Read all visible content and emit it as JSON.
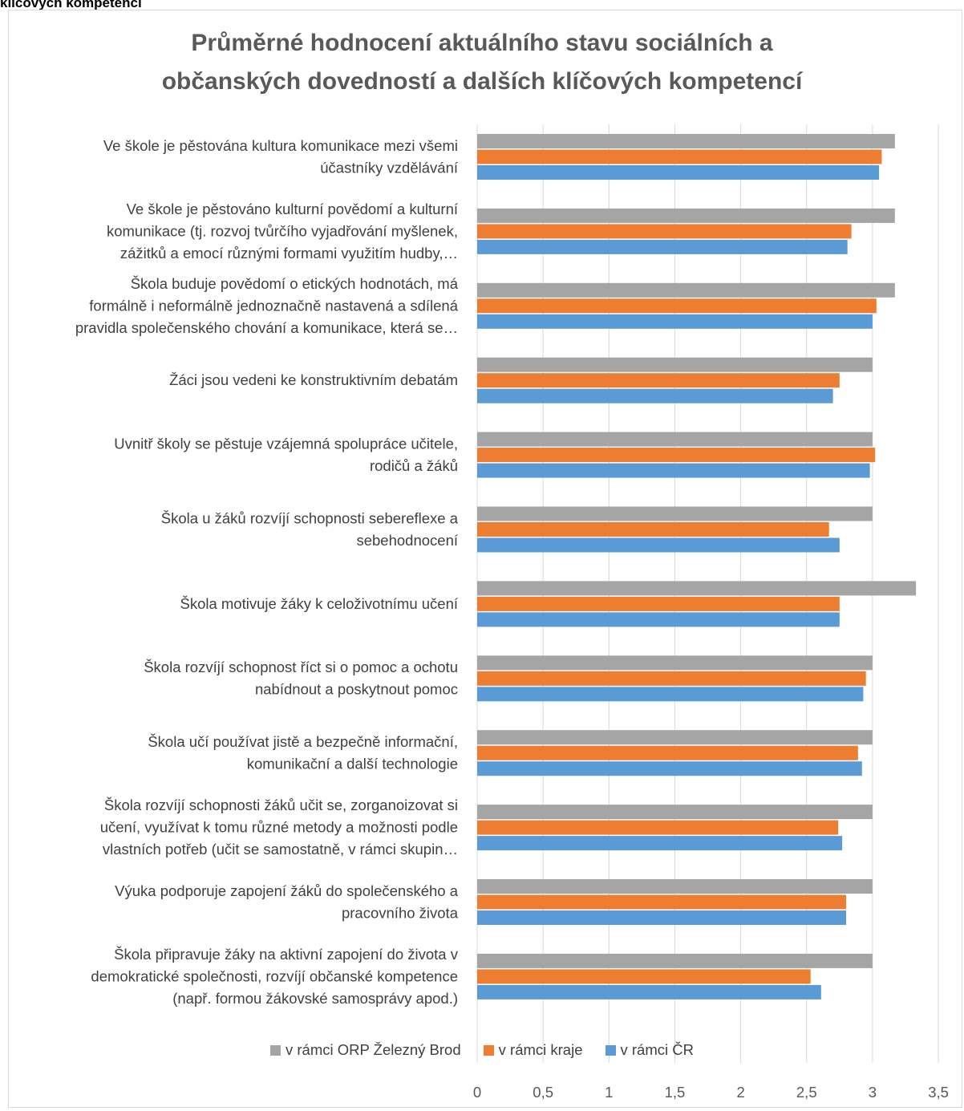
{
  "heading": "klíčových kompetencí",
  "chart_data": {
    "type": "bar",
    "orientation": "horizontal",
    "title_lines": [
      "Průměrné hodnocení aktuálního stavu sociálních a",
      "občanských dovedností a dalších klíčových kompetencí"
    ],
    "categories": [
      [
        "Ve škole je pěstována kultura komunikace mezi všemi",
        "účastníky vzdělávání"
      ],
      [
        "Ve škole je pěstováno kulturní povědomí a kulturní",
        "komunikace (tj. rozvoj tvůrčího vyjadřování myšlenek,",
        "zážitků a emocí různými formami využitím hudby,…"
      ],
      [
        "Škola buduje povědomí o etických hodnotách, má",
        "formálně i neformálně jednoznačně nastavená a sdílená",
        "pravidla společenského chování a komunikace, která se…"
      ],
      [
        "Žáci jsou vedeni ke konstruktivním debatám"
      ],
      [
        "Uvnitř školy se pěstuje vzájemná spolupráce učitele,",
        "rodičů a žáků"
      ],
      [
        "Škola u žáků rozvíjí schopnosti sebereflexe a",
        "sebehodnocení"
      ],
      [
        "Škola motivuje žáky k celoživotnímu učení"
      ],
      [
        "Škola rozvíjí schopnost říct si o pomoc a ochotu",
        "nabídnout a poskytnout pomoc"
      ],
      [
        "Škola učí používat jistě a bezpečně informační,",
        "komunikační a další technologie"
      ],
      [
        "Škola rozvíjí schopnosti žáků učit se, zorganoizovat si",
        "učení, využívat k tomu různé metody a možnosti podle",
        "vlastních potřeb (učit se samostatně, v rámci skupin…"
      ],
      [
        "Výuka podporuje zapojení žáků do společenského a",
        "pracovního života"
      ],
      [
        "Škola připravuje žáky na aktivní zapojení do života v",
        "demokratické společnosti, rozvíjí občanské kompetence",
        "(např. formou žákovské samosprávy apod.)"
      ]
    ],
    "series": [
      {
        "name": "v rámci ORP Železný Brod",
        "color": "#a5a5a5",
        "values": [
          3.17,
          3.17,
          3.17,
          3.0,
          3.0,
          3.0,
          3.33,
          3.0,
          3.0,
          3.0,
          3.0,
          3.0
        ]
      },
      {
        "name": "v rámci kraje",
        "color": "#ed7d31",
        "values": [
          3.07,
          2.84,
          3.03,
          2.75,
          3.02,
          2.67,
          2.75,
          2.95,
          2.89,
          2.74,
          2.8,
          2.53
        ]
      },
      {
        "name": "v rámci ČR",
        "color": "#5b9bd5",
        "values": [
          3.05,
          2.81,
          3.0,
          2.7,
          2.98,
          2.75,
          2.75,
          2.93,
          2.92,
          2.77,
          2.8,
          2.61
        ]
      }
    ],
    "xlim": [
      0,
      3.5
    ],
    "xticks": [
      "0",
      "0,5",
      "1",
      "1,5",
      "2",
      "2,5",
      "3",
      "3,5"
    ],
    "grid": true,
    "legend_position": "bottom"
  }
}
